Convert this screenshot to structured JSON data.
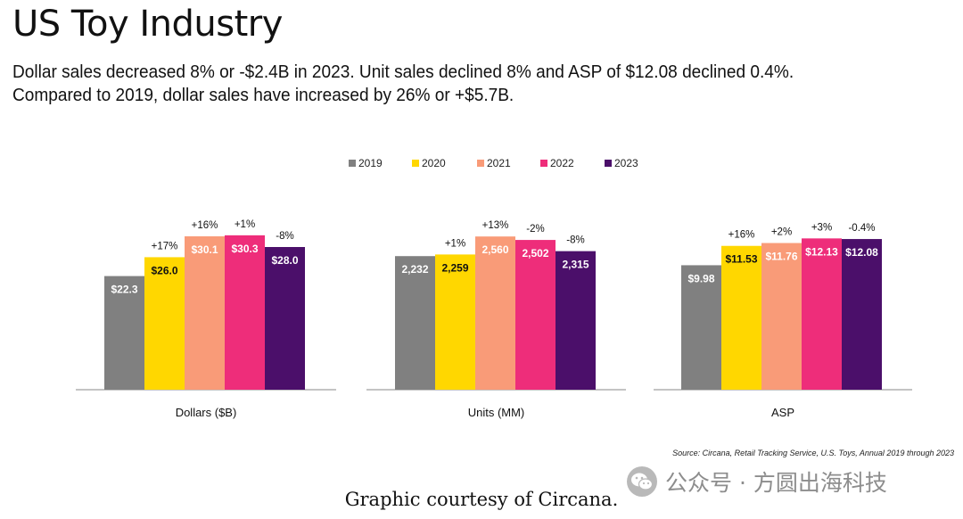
{
  "header": {
    "title": "US Toy Industry",
    "subtitle_line1": "Dollar sales decreased 8% or -$2.4B in 2023. Unit sales declined 8% and ASP of $12.08 declined 0.4%.",
    "subtitle_line2": "Compared to 2019, dollar sales have increased by 26% or +$5.7B."
  },
  "colors": {
    "2019": "#808080",
    "2020": "#FFD700",
    "2021": "#F99B78",
    "2022": "#EE2D7A",
    "2023": "#4B0F6A"
  },
  "chart_data": {
    "type": "bar",
    "legend": [
      "2019",
      "2020",
      "2021",
      "2022",
      "2023"
    ],
    "legend_position": "top-center",
    "groups": [
      {
        "name": "Dollars ($B)",
        "values": [
          22.3,
          26.0,
          30.1,
          30.3,
          28.0
        ],
        "labels": [
          "$22.3",
          "$26.0",
          "$30.1",
          "$30.3",
          "$28.0"
        ],
        "changes": [
          "",
          "+17%",
          "+16%",
          "+1%",
          "-8%"
        ],
        "ylim": [
          0,
          35
        ]
      },
      {
        "name": "Units (MM)",
        "values": [
          2232,
          2259,
          2560,
          2502,
          2315
        ],
        "labels": [
          "2,232",
          "2,259",
          "2,560",
          "2,502",
          "2,315"
        ],
        "changes": [
          "",
          "+1%",
          "+13%",
          "-2%",
          "-8%"
        ],
        "ylim": [
          0,
          2980
        ]
      },
      {
        "name": "ASP",
        "values": [
          9.98,
          11.53,
          11.76,
          12.13,
          12.08
        ],
        "labels": [
          "$9.98",
          "$11.53",
          "$11.76",
          "$12.13",
          "$12.08"
        ],
        "changes": [
          "",
          "+16%",
          "+2%",
          "+3%",
          "-0.4%"
        ],
        "ylim": [
          0,
          14.3
        ]
      }
    ]
  },
  "source": "Source: Circana, Retail Tracking Service, U.S. Toys, Annual 2019 through 2023",
  "watermark": "公众号 · 方圆出海科技",
  "caption": "Graphic courtesy of Circana."
}
